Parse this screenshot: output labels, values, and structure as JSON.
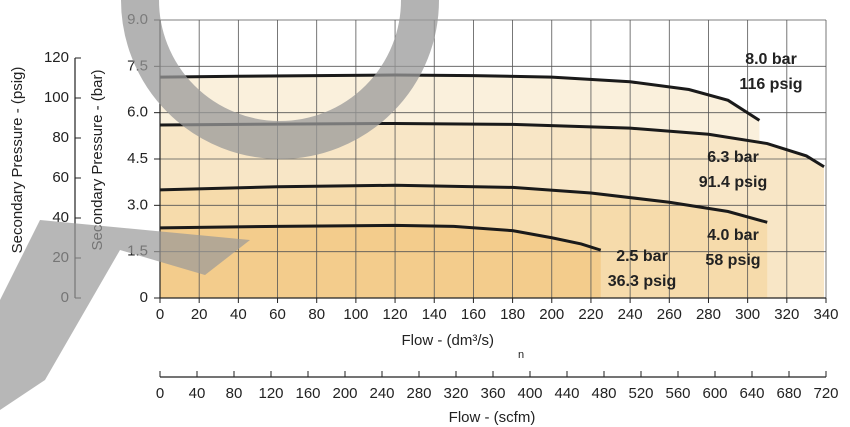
{
  "chart_data": {
    "type": "line",
    "x_label": "Flow - (dm³/s)",
    "x_label_sub": "n",
    "y_label": "Secondary Pressure - (bar)",
    "y2_label": "Secondary Pressure - (psig)",
    "x2_label": "Flow - (scfm)",
    "xlim": [
      0,
      340
    ],
    "xticks": [
      0,
      20,
      40,
      60,
      80,
      100,
      120,
      140,
      160,
      180,
      200,
      220,
      240,
      260,
      280,
      300,
      320,
      340
    ],
    "ylim": [
      0,
      9
    ],
    "yticks": [
      0,
      1.5,
      {
        "value": 3,
        "label": "3.0"
      },
      4.5,
      {
        "value": 6,
        "label": "6.0"
      },
      7.5,
      {
        "value": 9,
        "label": "9.0"
      }
    ],
    "y2lim": [
      0,
      139
    ],
    "y2ticks": [
      0,
      20,
      40,
      60,
      80,
      100,
      120
    ],
    "x2lim": [
      0,
      720
    ],
    "x2ticks": [
      0,
      40,
      80,
      120,
      160,
      200,
      240,
      280,
      320,
      360,
      400,
      440,
      480,
      520,
      560,
      600,
      640,
      680,
      720
    ],
    "grid": true,
    "series": [
      {
        "name": "8.0 bar",
        "psig_label": "116 psig",
        "color": "#faf0dc",
        "x": [
          0,
          40,
          80,
          120,
          160,
          200,
          240,
          270,
          290,
          306
        ],
        "values": [
          7.15,
          7.18,
          7.2,
          7.22,
          7.2,
          7.15,
          7.0,
          6.75,
          6.4,
          5.75
        ]
      },
      {
        "name": "6.3 bar",
        "psig_label": "91.4 psig",
        "color": "#f8e6c6",
        "x": [
          0,
          60,
          120,
          180,
          240,
          280,
          310,
          330,
          339
        ],
        "values": [
          5.6,
          5.63,
          5.65,
          5.62,
          5.5,
          5.3,
          5.0,
          4.6,
          4.25
        ]
      },
      {
        "name": "4.0 bar",
        "psig_label": "58 psig",
        "color": "#f6dbab",
        "x": [
          0,
          60,
          120,
          180,
          220,
          260,
          290,
          310
        ],
        "values": [
          3.5,
          3.6,
          3.65,
          3.58,
          3.4,
          3.1,
          2.8,
          2.45
        ]
      },
      {
        "name": "2.5 bar",
        "psig_label": "36.3 psig",
        "color": "#f3cc8c",
        "x": [
          0,
          60,
          120,
          150,
          180,
          200,
          215,
          225
        ],
        "values": [
          2.27,
          2.32,
          2.35,
          2.32,
          2.18,
          1.95,
          1.75,
          1.55
        ]
      }
    ]
  }
}
